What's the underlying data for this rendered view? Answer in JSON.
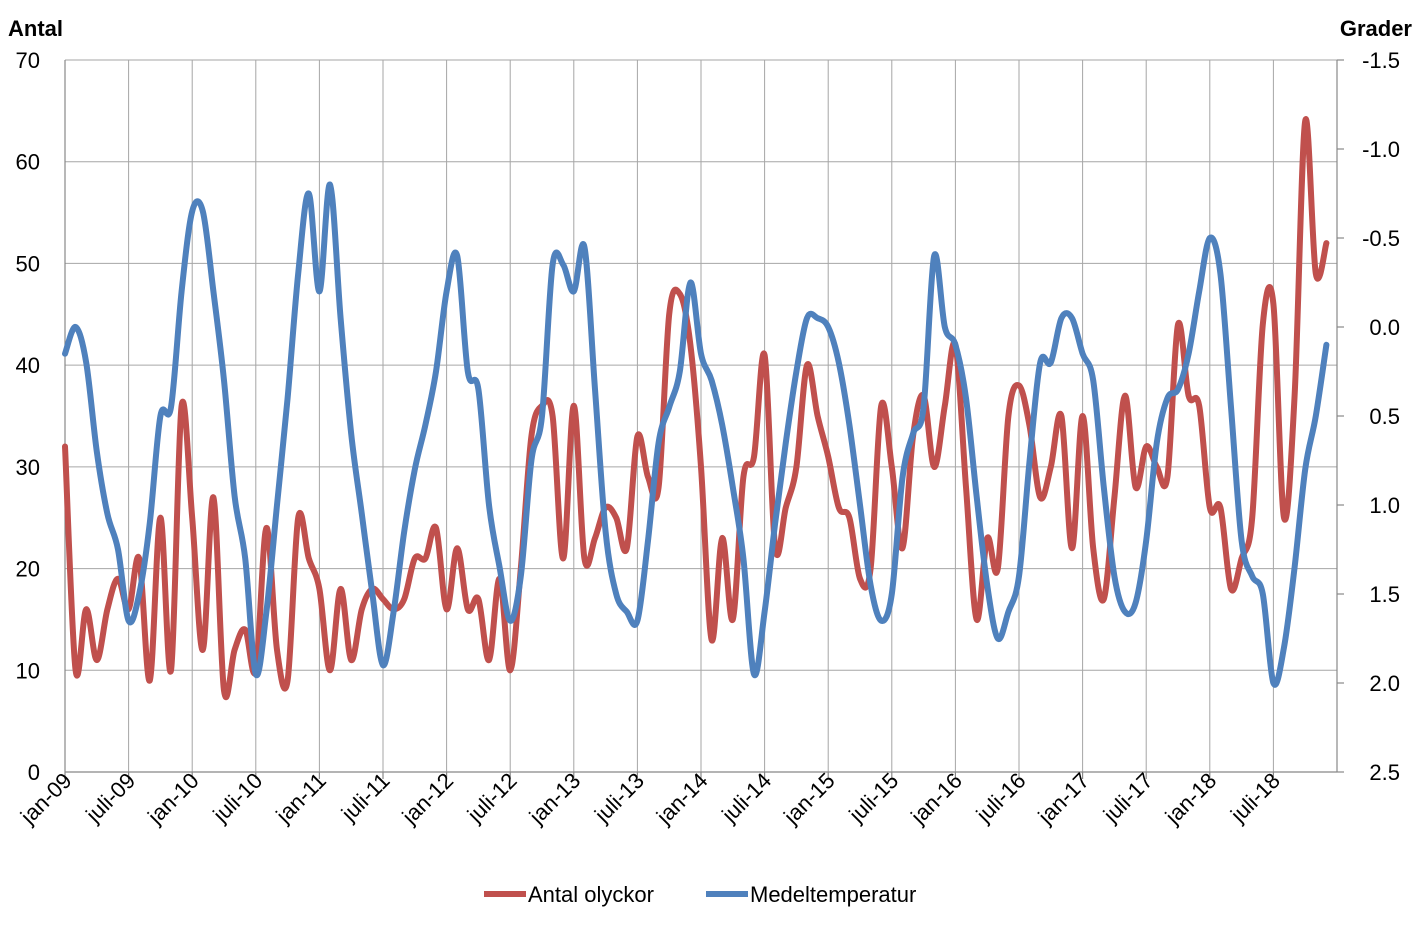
{
  "chart_data": {
    "type": "line",
    "y_left_label": "Antal",
    "y_right_label": "Grader",
    "y_left_range": [
      0,
      70
    ],
    "y_left_ticks": [
      "0",
      "10",
      "20",
      "30",
      "40",
      "50",
      "60",
      "70"
    ],
    "y_right_range": [
      -1.5,
      2.5
    ],
    "y_right_inverted": true,
    "y_right_ticks": [
      "-1.5",
      "-1.0",
      "-0.5",
      "0.0",
      "0.5",
      "1.0",
      "1.5",
      "2.0",
      "2.5"
    ],
    "x_tick_labels": [
      "jan-09",
      "juli-09",
      "jan-10",
      "juli-10",
      "jan-11",
      "juli-11",
      "jan-12",
      "juli-12",
      "jan-13",
      "juli-13",
      "jan-14",
      "juli-14",
      "jan-15",
      "juli-15",
      "jan-16",
      "juli-16",
      "jan-17",
      "juli-17",
      "jan-18",
      "juli-18"
    ],
    "months_count": 120,
    "grid": true,
    "legend_position": "bottom",
    "series": [
      {
        "name": "Antal olyckor",
        "axis": "left",
        "color": "#c0504d",
        "values": [
          32,
          10,
          16,
          11,
          16,
          19,
          16,
          21,
          9,
          25,
          10,
          36,
          25,
          12,
          27,
          8,
          12,
          14,
          10,
          24,
          12,
          9,
          25,
          21,
          18,
          10,
          18,
          11,
          16,
          18,
          17,
          16,
          17,
          21,
          21,
          24,
          16,
          22,
          16,
          17,
          11,
          19,
          10,
          20,
          33,
          36,
          35,
          21,
          36,
          21,
          23,
          26,
          25,
          22,
          33,
          29,
          28,
          45,
          47,
          42,
          30,
          13,
          23,
          15,
          29,
          31,
          41,
          22,
          26,
          30,
          40,
          35,
          31,
          26,
          25,
          19,
          20,
          36,
          30,
          22,
          33,
          37,
          30,
          36,
          42,
          28,
          15,
          23,
          20,
          35,
          38,
          34,
          27,
          30,
          35,
          22,
          35,
          22,
          17,
          27,
          37,
          28,
          32,
          30,
          29,
          44,
          37,
          36,
          26,
          26,
          18,
          21,
          25,
          44,
          46,
          25,
          37,
          64,
          49,
          52
        ]
      },
      {
        "name": "Medeltemperatur",
        "axis": "right",
        "color": "#4f81bd",
        "values": [
          0.15,
          0.0,
          0.2,
          0.7,
          1.05,
          1.25,
          1.65,
          1.5,
          1.1,
          0.5,
          0.45,
          -0.2,
          -0.65,
          -0.65,
          -0.2,
          0.3,
          0.95,
          1.3,
          1.95,
          1.6,
          1.0,
          0.4,
          -0.3,
          -0.75,
          -0.2,
          -0.8,
          -0.05,
          0.6,
          1.05,
          1.5,
          1.9,
          1.6,
          1.15,
          0.8,
          0.55,
          0.25,
          -0.2,
          -0.4,
          0.25,
          0.35,
          1.0,
          1.35,
          1.65,
          1.4,
          0.75,
          0.5,
          -0.35,
          -0.35,
          -0.2,
          -0.45,
          0.35,
          1.15,
          1.5,
          1.6,
          1.65,
          1.2,
          0.65,
          0.45,
          0.25,
          -0.25,
          0.15,
          0.3,
          0.55,
          0.9,
          1.3,
          1.95,
          1.6,
          1.1,
          0.65,
          0.25,
          -0.05,
          -0.05,
          0.0,
          0.2,
          0.55,
          1.0,
          1.45,
          1.65,
          1.5,
          0.85,
          0.6,
          0.45,
          -0.4,
          0.0,
          0.1,
          0.4,
          0.95,
          1.45,
          1.75,
          1.6,
          1.4,
          0.75,
          0.2,
          0.2,
          -0.05,
          -0.05,
          0.15,
          0.3,
          0.9,
          1.4,
          1.6,
          1.55,
          1.2,
          0.65,
          0.4,
          0.35,
          0.15,
          -0.2,
          -0.5,
          -0.3,
          0.45,
          1.2,
          1.4,
          1.5,
          2.0,
          1.8,
          1.35,
          0.8,
          0.5,
          0.1
        ]
      }
    ]
  }
}
